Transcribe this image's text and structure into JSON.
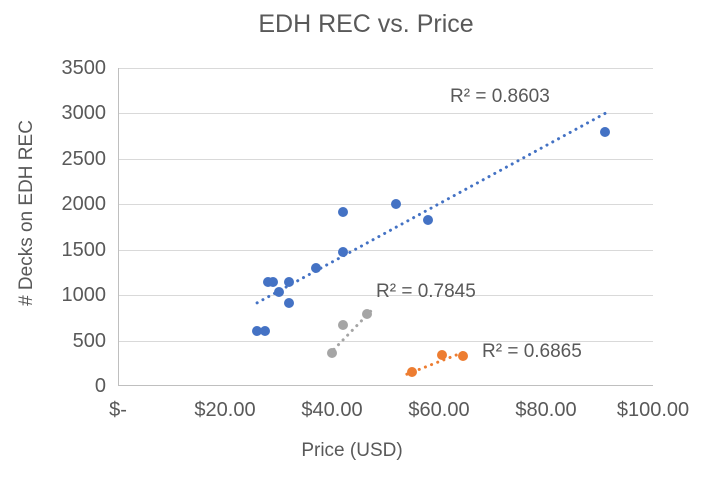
{
  "chart_data": {
    "type": "scatter",
    "title": "EDH REC vs. Price",
    "xlabel": "Price (USD)",
    "ylabel": "# Decks on EDH REC",
    "xlim": [
      0,
      100
    ],
    "ylim": [
      0,
      3500
    ],
    "grid": "horizontal",
    "legend_position": "none",
    "x_ticks": {
      "values": [
        0,
        20,
        40,
        60,
        80,
        100
      ],
      "labels": [
        "$-",
        "$20.00",
        "$40.00",
        "$60.00",
        "$80.00",
        "$100.00"
      ]
    },
    "y_ticks": {
      "values": [
        0,
        500,
        1000,
        1500,
        2000,
        2500,
        3000,
        3500
      ],
      "labels": [
        "0",
        "500",
        "1000",
        "1500",
        "2000",
        "2500",
        "3000",
        "3500"
      ]
    },
    "series": [
      {
        "name": "series-blue",
        "color": "#4472C4",
        "r2": 0.8603,
        "r2_label": "R² = 0.8603",
        "points": [
          [
            26,
            600
          ],
          [
            27.5,
            600
          ],
          [
            28,
            1150
          ],
          [
            29,
            1140
          ],
          [
            30,
            1030
          ],
          [
            32,
            1150
          ],
          [
            32,
            910
          ],
          [
            37,
            1300
          ],
          [
            42,
            1480
          ],
          [
            42,
            1910
          ],
          [
            52,
            2000
          ],
          [
            58,
            1830
          ],
          [
            91,
            2800
          ]
        ],
        "trendline": {
          "from": [
            26,
            915
          ],
          "to": [
            91.5,
            3015
          ]
        }
      },
      {
        "name": "series-gray",
        "color": "#A5A5A5",
        "r2": 0.7845,
        "r2_label": "R² = 0.7845",
        "points": [
          [
            40,
            360
          ],
          [
            42,
            670
          ],
          [
            46.5,
            790
          ]
        ],
        "trendline": {
          "from": [
            39.5,
            350
          ],
          "to": [
            48,
            870
          ]
        }
      },
      {
        "name": "series-orange",
        "color": "#ED7D31",
        "r2": 0.6865,
        "r2_label": "R² = 0.6865",
        "points": [
          [
            55,
            155
          ],
          [
            60.5,
            340
          ],
          [
            64.5,
            330
          ]
        ],
        "trendline": {
          "from": [
            54,
            130
          ],
          "to": [
            64.5,
            370
          ]
        }
      }
    ]
  }
}
